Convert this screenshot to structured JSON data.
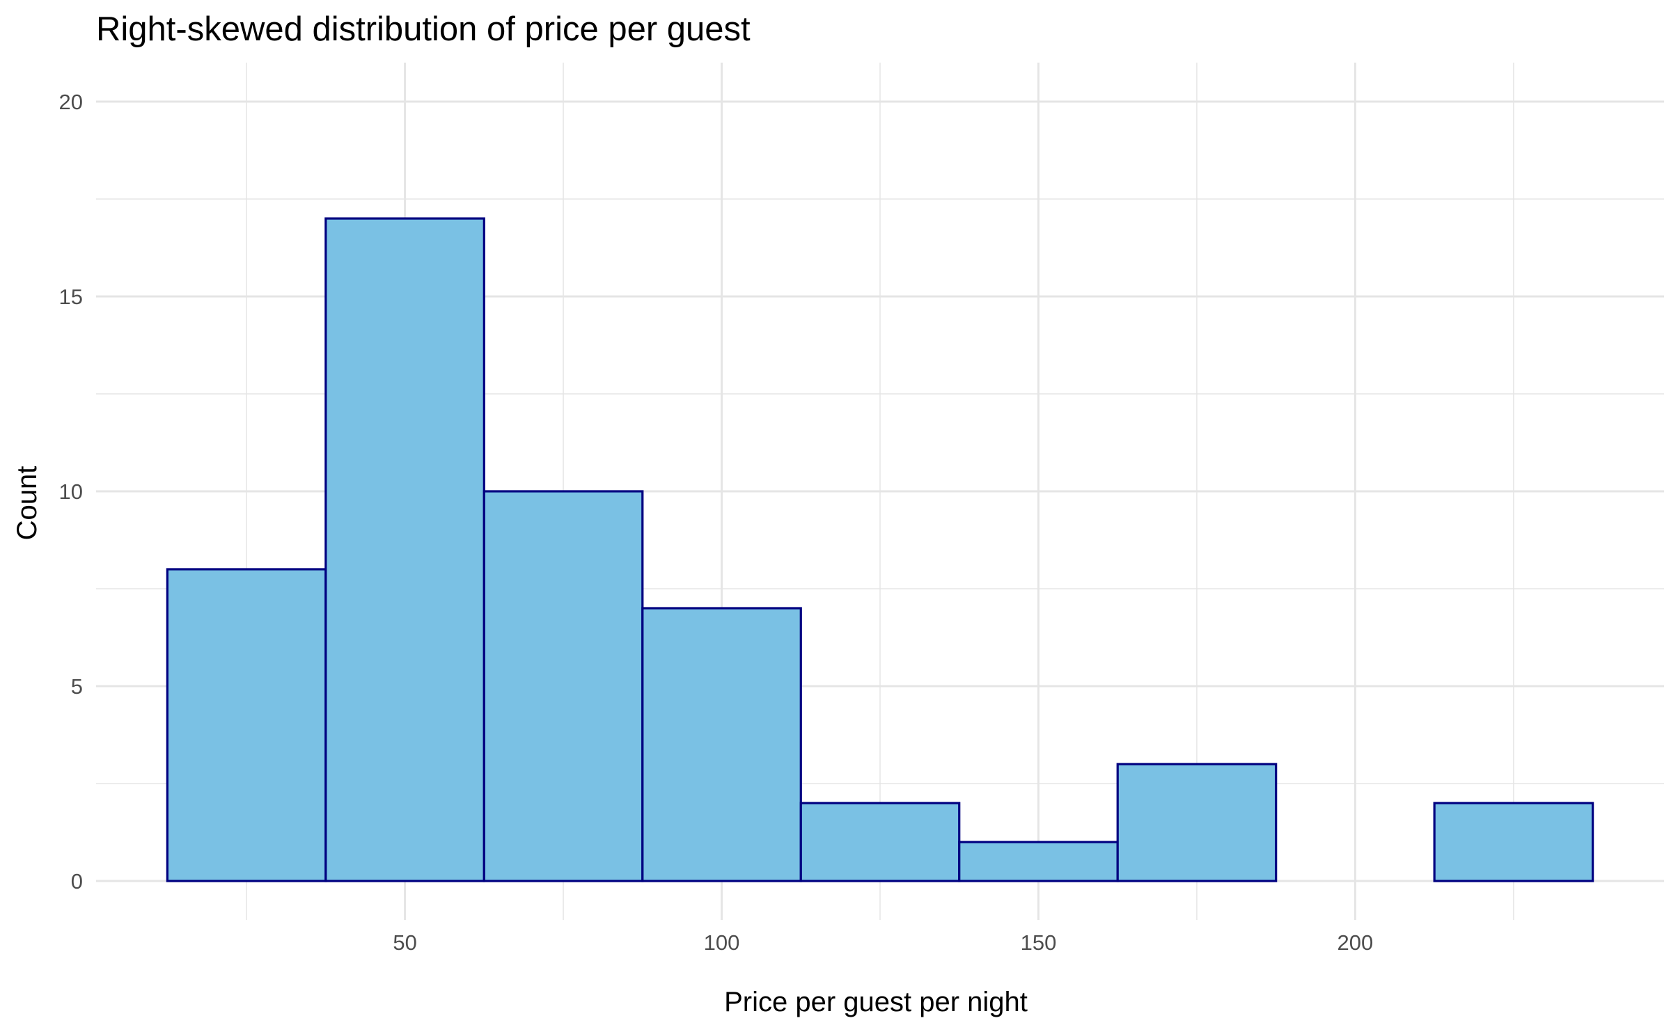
{
  "chart_data": {
    "type": "bar",
    "title": "Right-skewed distribution of price per guest",
    "xlabel": "Price per guest per night",
    "ylabel": "Count",
    "bin_width": 25,
    "bins": [
      {
        "start": 12.5,
        "end": 37.5,
        "count": 8
      },
      {
        "start": 37.5,
        "end": 62.5,
        "count": 17
      },
      {
        "start": 62.5,
        "end": 87.5,
        "count": 10
      },
      {
        "start": 87.5,
        "end": 112.5,
        "count": 7
      },
      {
        "start": 112.5,
        "end": 137.5,
        "count": 2
      },
      {
        "start": 137.5,
        "end": 162.5,
        "count": 1
      },
      {
        "start": 162.5,
        "end": 187.5,
        "count": 3
      },
      {
        "start": 187.5,
        "end": 212.5,
        "count": 0
      },
      {
        "start": 212.5,
        "end": 237.5,
        "count": 2
      }
    ],
    "xlim": [
      1.25,
      248.75
    ],
    "ylim": [
      -1,
      21
    ],
    "x_ticks": [
      50,
      100,
      150,
      200
    ],
    "x_minor_ticks": [
      25,
      75,
      125,
      175,
      225
    ],
    "y_ticks": [
      0,
      5,
      10,
      15,
      20
    ],
    "y_minor_ticks": [
      2.5,
      7.5,
      12.5,
      17.5
    ],
    "grid": true,
    "bar_fill": "#7AC1E4",
    "bar_stroke": "#000080",
    "grid_color": "#E5E5E5",
    "tick_label_color": "#4D4D4D"
  }
}
